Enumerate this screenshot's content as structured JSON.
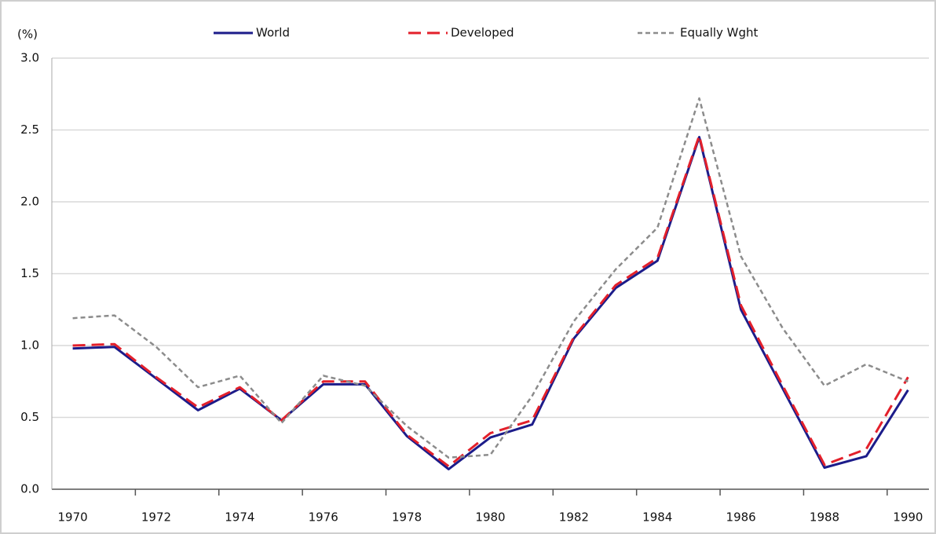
{
  "chart_data": {
    "type": "line",
    "y_unit": "(%)",
    "categories": [
      "1970",
      null,
      "1972",
      null,
      "1974",
      null,
      "1976",
      null,
      "1978",
      null,
      "1980",
      null,
      "1982",
      null,
      "1984",
      null,
      "1986",
      null,
      "1988",
      null,
      "1990"
    ],
    "series": [
      {
        "name": "World",
        "color": "#1c1c8a",
        "dash": "none",
        "values": [
          0.98,
          0.99,
          0.77,
          0.55,
          0.7,
          0.48,
          0.73,
          0.73,
          0.37,
          0.14,
          0.36,
          0.45,
          1.05,
          1.4,
          1.59,
          2.45,
          1.25,
          0.7,
          0.15,
          0.23,
          0.69
        ]
      },
      {
        "name": "Developed",
        "color": "#e3202b",
        "dash": "16 8",
        "values": [
          1.0,
          1.01,
          0.78,
          0.57,
          0.71,
          0.48,
          0.75,
          0.75,
          0.38,
          0.16,
          0.39,
          0.48,
          1.06,
          1.42,
          1.61,
          2.46,
          1.28,
          0.72,
          0.17,
          0.28,
          0.78
        ]
      },
      {
        "name": "Equally Wght",
        "color": "#8c8c8c",
        "dash": "6 4",
        "values": [
          1.19,
          1.21,
          0.99,
          0.71,
          0.79,
          0.46,
          0.79,
          0.72,
          0.44,
          0.22,
          0.24,
          0.65,
          1.17,
          1.53,
          1.82,
          2.72,
          1.62,
          1.12,
          0.72,
          0.87,
          0.75
        ]
      }
    ],
    "ylim": [
      0,
      3
    ],
    "yticks": [
      {
        "value": 0,
        "label": "0.0"
      },
      0.5,
      {
        "value": 1,
        "label": "1.0"
      },
      1.5,
      {
        "value": 2,
        "label": "2.0"
      },
      2.5,
      {
        "value": 3,
        "label": "3.0"
      }
    ],
    "grid": true
  }
}
